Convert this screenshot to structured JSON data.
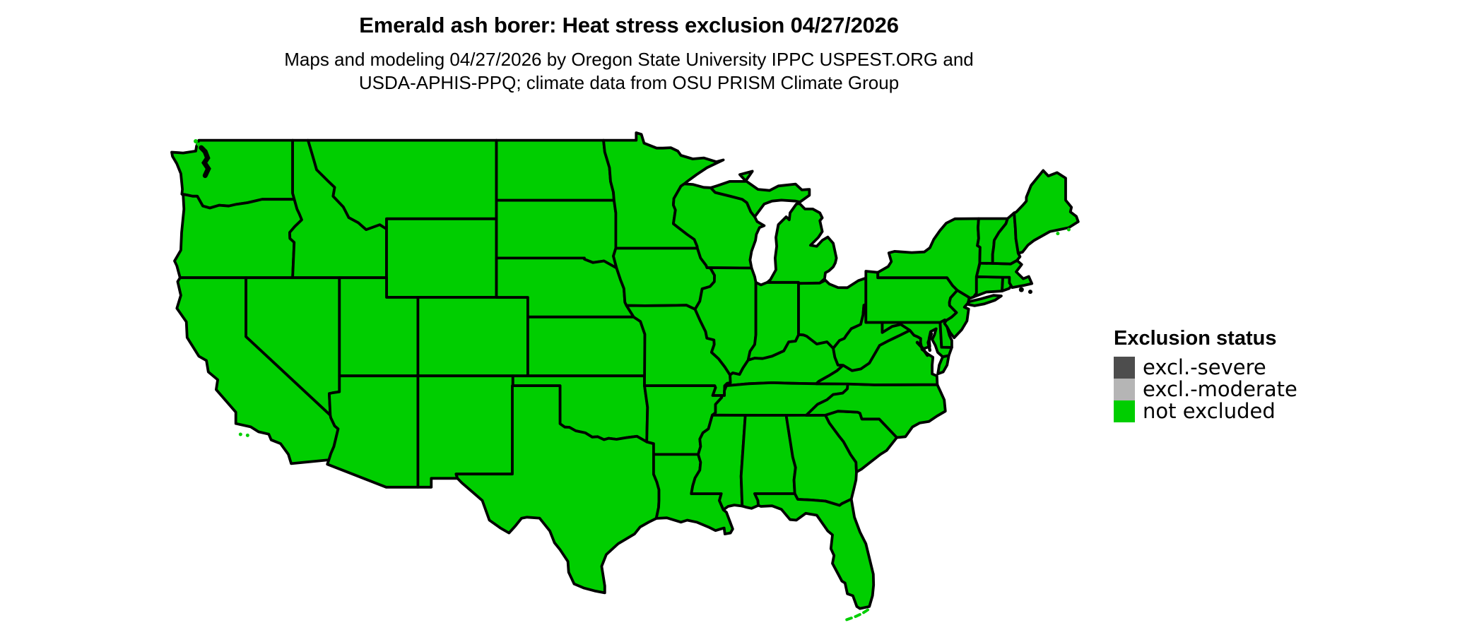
{
  "header": {
    "title": "Emerald ash borer: Heat stress exclusion 04/27/2026",
    "subtitle_line1": "Maps and modeling 04/27/2026 by Oregon State University IPPC USPEST.ORG and",
    "subtitle_line2": "USDA-APHIS-PPQ; climate data from OSU PRISM Climate Group"
  },
  "legend": {
    "title": "Exclusion status",
    "items": [
      {
        "label": "excl.-severe",
        "color": "#4D4D4D"
      },
      {
        "label": "excl.-moderate",
        "color": "#B5B5B5"
      },
      {
        "label": "not excluded",
        "color": "#00CE00"
      }
    ]
  },
  "map": {
    "region": "conterminous United States",
    "all_states_status": "not excluded",
    "fill_color": "#00CE00",
    "border_color": "#000000"
  },
  "chart_data": {
    "type": "choropleth",
    "title": "Emerald ash borer: Heat stress exclusion 04/27/2026",
    "categories": [
      "excl.-severe",
      "excl.-moderate",
      "not excluded"
    ],
    "category_colors": [
      "#4D4D4D",
      "#B5B5B5",
      "#00CE00"
    ],
    "values": "all 48 conterminous US states shown as: not excluded",
    "legend_position": "right"
  }
}
